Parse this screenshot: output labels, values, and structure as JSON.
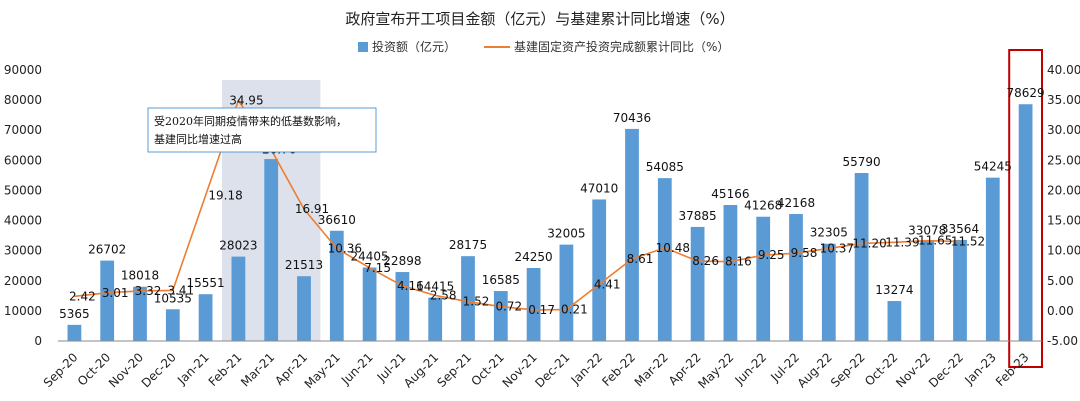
{
  "chart_data": {
    "type": "bar",
    "title": "政府宣布开工项目金额（亿元）与基建累计同比增速（%）",
    "categories": [
      "Sep-20",
      "Oct-20",
      "Nov-20",
      "Dec-20",
      "Jan-21",
      "Feb-21",
      "Mar-21",
      "Apr-21",
      "May-21",
      "Jun-21",
      "Jul-21",
      "Aug-21",
      "Sep-21",
      "Oct-21",
      "Nov-21",
      "Dec-21",
      "Jan-22",
      "Feb-22",
      "Mar-22",
      "Apr-22",
      "May-22",
      "Jun-22",
      "Jul-22",
      "Aug-22",
      "Sep-22",
      "Oct-22",
      "Nov-22",
      "Dec-22",
      "Jan-23",
      "Feb-23"
    ],
    "series": [
      {
        "name": "投资额（亿元）",
        "type": "bar",
        "axis": "left",
        "color": "#5B9BD5",
        "values": [
          5365,
          26702,
          18018,
          10535,
          15551,
          28023,
          60417,
          21513,
          36610,
          24405,
          22898,
          14415,
          28175,
          16585,
          24250,
          32005,
          47010,
          70436,
          54085,
          37885,
          45166,
          41268,
          42168,
          32305,
          55790,
          13274,
          33078,
          33564,
          54245,
          78629
        ]
      },
      {
        "name": "基建固定资产投资完成额累计同比（%）",
        "type": "line",
        "axis": "right",
        "color": "#ED7D31",
        "values": [
          2.42,
          3.01,
          3.32,
          3.41,
          null,
          34.95,
          26.76,
          16.91,
          10.36,
          7.15,
          4.16,
          2.58,
          1.52,
          0.72,
          0.17,
          0.21,
          4.41,
          8.61,
          10.48,
          8.26,
          8.16,
          9.25,
          9.58,
          10.37,
          11.2,
          11.39,
          11.65,
          11.52,
          null,
          null
        ],
        "labels": [
          "2.42",
          "3.01",
          "3.32",
          "3.41",
          "",
          "34.95",
          "26.76",
          "16.91",
          "10.36",
          "7.15",
          "4.16",
          "2.58",
          "1.52",
          "0.72",
          "0.17",
          "0.21",
          "4.41",
          "8.61",
          "10.48",
          "8.26",
          "8.16",
          "9.25",
          "9.58",
          "10.37",
          "11.20",
          "11.39",
          "11.65",
          "11.52",
          "",
          ""
        ]
      }
    ],
    "extra_line_labels": [
      {
        "category_index": 4,
        "text": "19.18",
        "value": 19.18
      }
    ],
    "ylim_left": [
      0,
      90000
    ],
    "yticks_left": [
      "0",
      "10000",
      "20000",
      "30000",
      "40000",
      "50000",
      "60000",
      "70000",
      "80000",
      "90000"
    ],
    "ylim_right": [
      -5,
      40
    ],
    "yticks_right": [
      "-5.00",
      "0.00",
      "5.00",
      "10.00",
      "15.00",
      "20.00",
      "25.00",
      "30.00",
      "35.00",
      "40.00"
    ],
    "grid": false,
    "legend": "top-center",
    "highlight_range": {
      "from": "Feb-21",
      "to": "Apr-21"
    },
    "highlight_box": {
      "category": "Feb-23",
      "color": "#C00000"
    },
    "annotation": {
      "lines": [
        "受2020年同期疫情带来的低基数影响，",
        "基建同比增速过高"
      ],
      "color": "#5B9BD5"
    }
  }
}
